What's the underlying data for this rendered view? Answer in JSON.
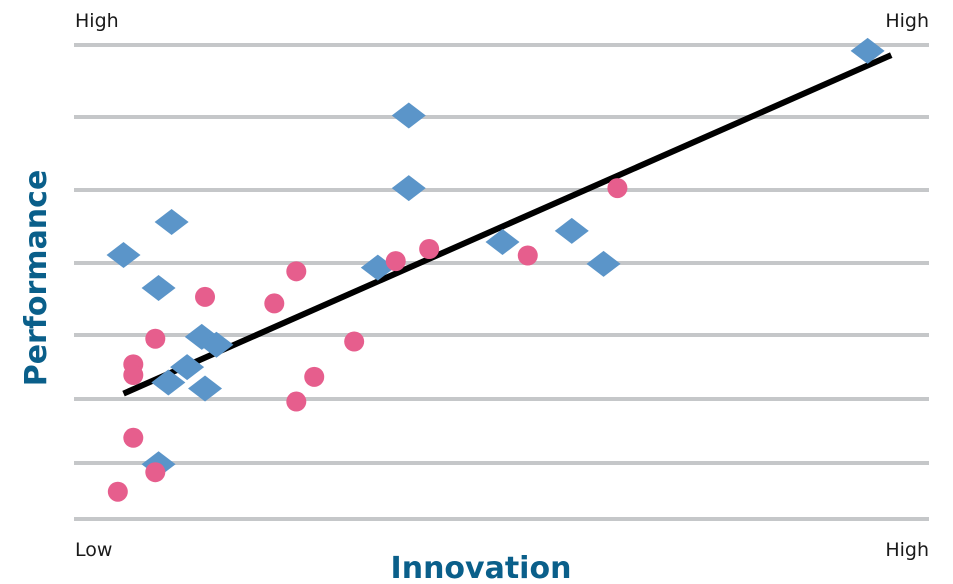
{
  "chart_data": {
    "type": "scatter",
    "title": "",
    "xlabel": "Innovation",
    "ylabel": "Performance",
    "xlim": [
      0,
      100
    ],
    "ylim": [
      0,
      100
    ],
    "grid": true,
    "labels": {
      "x_low": "Low",
      "x_high": "High",
      "y_high": "High",
      "y_high_right": "High"
    },
    "series": [
      {
        "marker": "diamond",
        "color": "#5b95c9",
        "points": [
          {
            "x": 3.5,
            "y": 54.4
          },
          {
            "x": 7.8,
            "y": 47.3
          },
          {
            "x": 9.4,
            "y": 61.5
          },
          {
            "x": 13.1,
            "y": 36.8
          },
          {
            "x": 14.9,
            "y": 35.1
          },
          {
            "x": 11.3,
            "y": 30.3
          },
          {
            "x": 9.0,
            "y": 27.0
          },
          {
            "x": 13.5,
            "y": 25.7
          },
          {
            "x": 7.8,
            "y": 9.4
          },
          {
            "x": 38.5,
            "y": 84.4
          },
          {
            "x": 38.5,
            "y": 68.8
          },
          {
            "x": 34.7,
            "y": 51.7
          },
          {
            "x": 50.0,
            "y": 57.2
          },
          {
            "x": 58.5,
            "y": 59.6
          },
          {
            "x": 62.4,
            "y": 52.5
          },
          {
            "x": 94.8,
            "y": 98.3
          }
        ]
      },
      {
        "marker": "circle",
        "color": "#e65e8d",
        "points": [
          {
            "x": 2.8,
            "y": 3.5
          },
          {
            "x": 4.7,
            "y": 15.1
          },
          {
            "x": 4.7,
            "y": 30.9
          },
          {
            "x": 4.7,
            "y": 28.6
          },
          {
            "x": 7.4,
            "y": 36.4
          },
          {
            "x": 7.4,
            "y": 7.7
          },
          {
            "x": 13.5,
            "y": 45.4
          },
          {
            "x": 22.0,
            "y": 44.0
          },
          {
            "x": 24.7,
            "y": 50.9
          },
          {
            "x": 24.7,
            "y": 22.9
          },
          {
            "x": 26.9,
            "y": 28.2
          },
          {
            "x": 31.8,
            "y": 35.8
          },
          {
            "x": 36.9,
            "y": 53.1
          },
          {
            "x": 41.0,
            "y": 55.7
          },
          {
            "x": 53.1,
            "y": 54.3
          },
          {
            "x": 64.1,
            "y": 68.8
          }
        ]
      }
    ],
    "trendline": {
      "color": "#000000",
      "points": [
        {
          "x": 3.5,
          "y": 24.6
        },
        {
          "x": 97.7,
          "y": 97.4
        }
      ]
    }
  }
}
